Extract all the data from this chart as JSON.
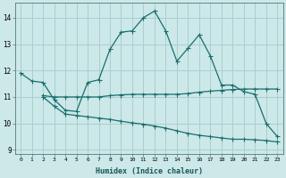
{
  "xlabel": "Humidex (Indice chaleur)",
  "bg_color": "#cce8e8",
  "grid_color": "#aacece",
  "line_color": "#1a6e6e",
  "xlim": [
    -0.5,
    23.5
  ],
  "ylim": [
    8.85,
    14.55
  ],
  "yticks": [
    9,
    10,
    11,
    12,
    13,
    14
  ],
  "xticks": [
    0,
    1,
    2,
    3,
    4,
    5,
    6,
    7,
    8,
    9,
    10,
    11,
    12,
    13,
    14,
    15,
    16,
    17,
    18,
    19,
    20,
    21,
    22,
    23
  ],
  "series1_x": [
    0,
    1,
    2,
    3,
    4,
    5,
    6,
    7,
    8,
    9,
    10,
    11,
    12,
    13,
    14,
    15,
    16,
    17,
    18,
    19,
    20,
    21,
    22,
    23
  ],
  "series1_y": [
    11.9,
    11.6,
    11.55,
    10.9,
    10.5,
    10.45,
    11.55,
    11.65,
    12.8,
    13.45,
    13.5,
    14.0,
    14.25,
    13.5,
    12.35,
    12.85,
    13.35,
    12.55,
    11.45,
    11.45,
    11.2,
    11.1,
    10.0,
    9.5
  ],
  "series2_x": [
    2,
    3,
    4,
    5,
    6,
    7,
    8,
    9,
    10,
    11,
    12,
    13,
    14,
    15,
    16,
    17,
    18,
    19,
    20,
    21,
    22,
    23
  ],
  "series2_y": [
    11.05,
    11.0,
    11.0,
    11.0,
    11.0,
    11.0,
    11.05,
    11.08,
    11.1,
    11.1,
    11.1,
    11.1,
    11.1,
    11.13,
    11.18,
    11.22,
    11.25,
    11.28,
    11.3,
    11.3,
    11.3,
    11.3
  ],
  "series3_x": [
    2,
    3,
    4,
    5,
    6,
    7,
    8,
    9,
    10,
    11,
    12,
    13,
    14,
    15,
    16,
    17,
    18,
    19,
    20,
    21,
    22,
    23
  ],
  "series3_y": [
    11.0,
    10.65,
    10.35,
    10.3,
    10.25,
    10.2,
    10.15,
    10.08,
    10.02,
    9.97,
    9.9,
    9.82,
    9.72,
    9.62,
    9.55,
    9.5,
    9.45,
    9.4,
    9.4,
    9.38,
    9.35,
    9.3
  ]
}
